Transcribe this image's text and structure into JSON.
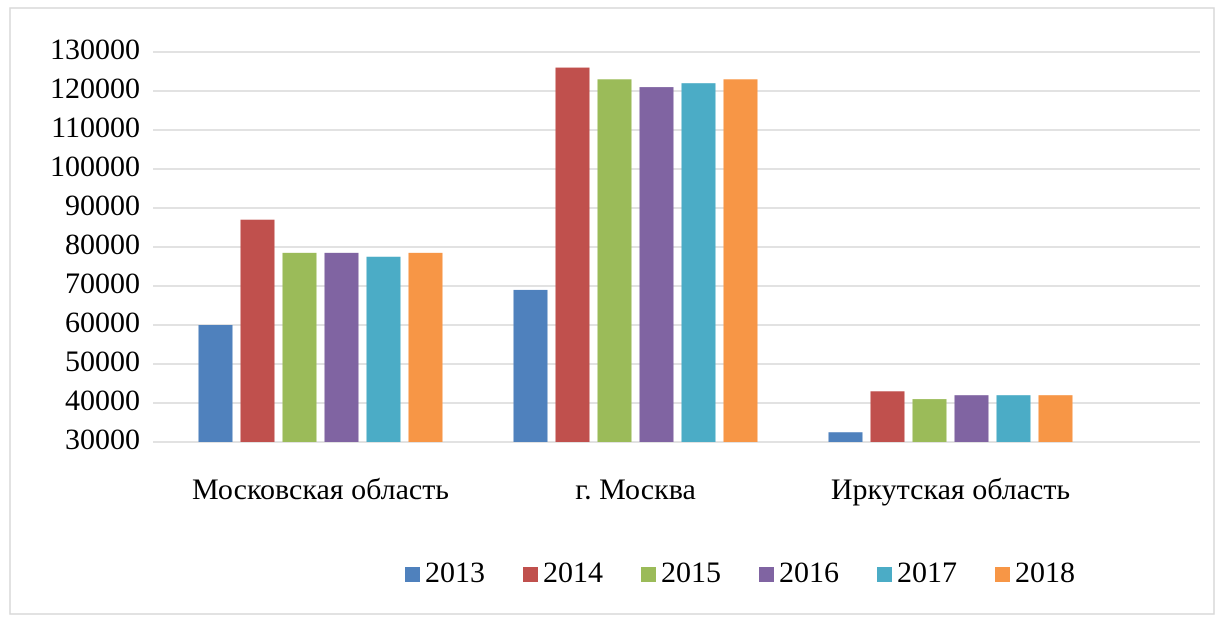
{
  "chart_data": {
    "type": "bar",
    "categories": [
      "Московская область",
      "г. Москва",
      "Иркутская область"
    ],
    "series": [
      {
        "name": "2013",
        "color": "#4f81bd",
        "values": [
          60000,
          69000,
          32500
        ]
      },
      {
        "name": "2014",
        "color": "#c0504d",
        "values": [
          87000,
          126000,
          43000
        ]
      },
      {
        "name": "2015",
        "color": "#9bbb59",
        "values": [
          78500,
          123000,
          41000
        ]
      },
      {
        "name": "2016",
        "color": "#8064a2",
        "values": [
          78500,
          121000,
          42000
        ]
      },
      {
        "name": "2017",
        "color": "#4bacc6",
        "values": [
          77500,
          122000,
          42000
        ]
      },
      {
        "name": "2018",
        "color": "#f79646",
        "values": [
          78500,
          123000,
          42000
        ]
      }
    ],
    "ylim": [
      30000,
      130000
    ],
    "yticks": [
      30000,
      40000,
      50000,
      60000,
      70000,
      80000,
      90000,
      100000,
      110000,
      120000,
      130000
    ],
    "grid": true,
    "legend": "bottom"
  }
}
